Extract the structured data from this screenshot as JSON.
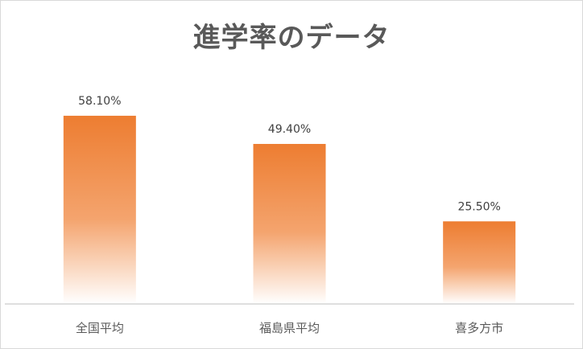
{
  "chart_data": {
    "type": "bar",
    "title": "進学率のデータ",
    "categories": [
      "全国平均",
      "福島県平均",
      "喜多方市"
    ],
    "values": [
      58.1,
      49.4,
      25.5
    ],
    "value_labels": [
      "58.10%",
      "49.40%",
      "25.50%"
    ],
    "ylim": [
      0,
      70
    ],
    "grid": false,
    "legend": "none",
    "xlabel": "",
    "ylabel": ""
  },
  "colors": {
    "bar_top": "#ED7D31",
    "bar_bottom": "#FFFFFF",
    "title": "#595959",
    "axis": "#BFBFBF"
  }
}
